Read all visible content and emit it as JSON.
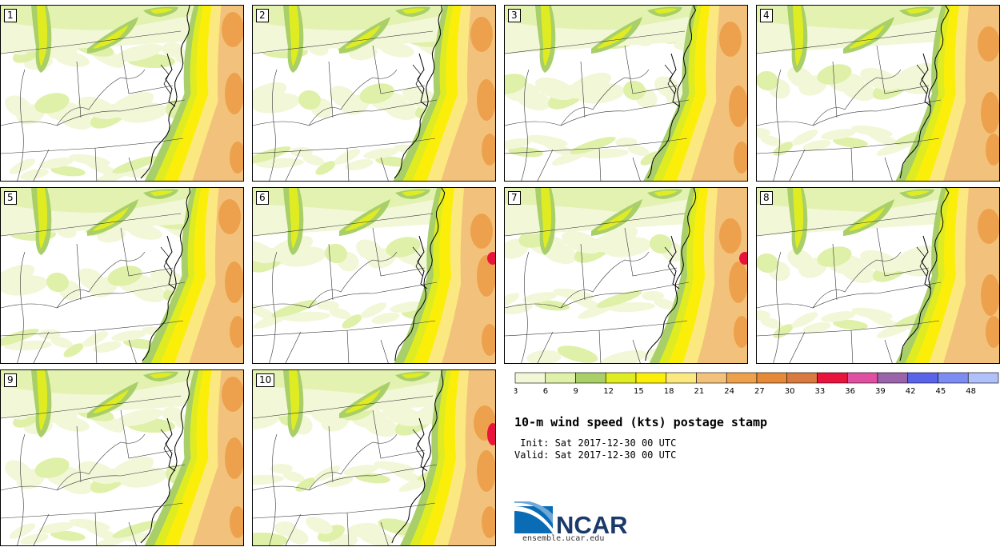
{
  "panels": [
    {
      "label": "1",
      "variant": 0
    },
    {
      "label": "2",
      "variant": 1
    },
    {
      "label": "3",
      "variant": 2
    },
    {
      "label": "4",
      "variant": 3
    },
    {
      "label": "5",
      "variant": 1
    },
    {
      "label": "6",
      "variant": 4
    },
    {
      "label": "7",
      "variant": 5
    },
    {
      "label": "8",
      "variant": 3
    },
    {
      "label": "9",
      "variant": 0
    },
    {
      "label": "10",
      "variant": 6
    }
  ],
  "colorbar": {
    "colors": [
      "#f2f7d8",
      "#dff0a8",
      "#a8cf68",
      "#e0ec22",
      "#fbef0a",
      "#fbe880",
      "#f2c27c",
      "#eea14c",
      "#e58a38",
      "#d97a40",
      "#e8143e",
      "#e050a0",
      "#9a64aa",
      "#5a64ea",
      "#7c8cf2",
      "#b0c0f8"
    ],
    "tick_labels": [
      "3",
      "6",
      "9",
      "12",
      "15",
      "18",
      "21",
      "24",
      "27",
      "30",
      "33",
      "36",
      "39",
      "42",
      "45",
      "48"
    ]
  },
  "title": "10-m wind speed (kts) postage stamp",
  "init": " Init: Sat 2017-12-30 00 UTC",
  "valid": "Valid: Sat 2017-12-30 00 UTC",
  "logo": {
    "text": "NCAR",
    "url": "ensemble.ucar.edu",
    "colors": {
      "blue": "#0a6cb4",
      "dark": "#1a3a6a"
    }
  }
}
